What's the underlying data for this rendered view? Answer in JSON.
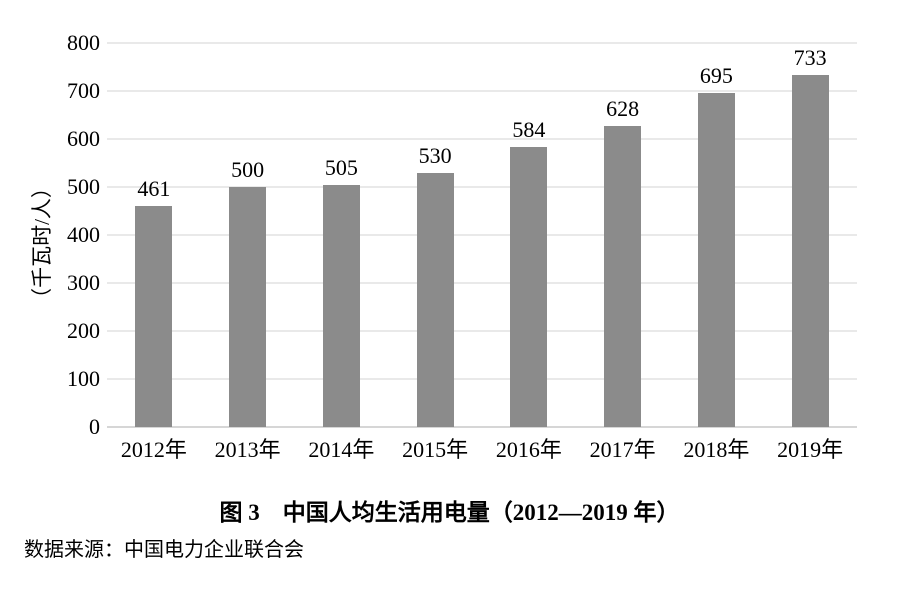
{
  "chart_data": {
    "type": "bar",
    "title": "图 3　中国人均生活用电量（2012—2019 年）",
    "source": "数据来源：中国电力企业联合会",
    "categories": [
      "2012年",
      "2013年",
      "2014年",
      "2015年",
      "2016年",
      "2017年",
      "2018年",
      "2019年"
    ],
    "values": [
      461,
      500,
      505,
      530,
      584,
      628,
      695,
      733
    ],
    "value_labels": true,
    "xlabel": "",
    "ylabel": "（千瓦时/人）",
    "ylim": [
      0,
      800
    ],
    "ytick_interval": 100,
    "yticks": [
      0,
      100,
      200,
      300,
      400,
      500,
      600,
      700,
      800
    ],
    "grid": true,
    "legend": "none",
    "colors": {
      "bar": "#8b8b8b",
      "gridline": "#e9e9e9",
      "axis_line": "#d6d6d6",
      "text": "#000000",
      "background": "#ffffff"
    }
  }
}
